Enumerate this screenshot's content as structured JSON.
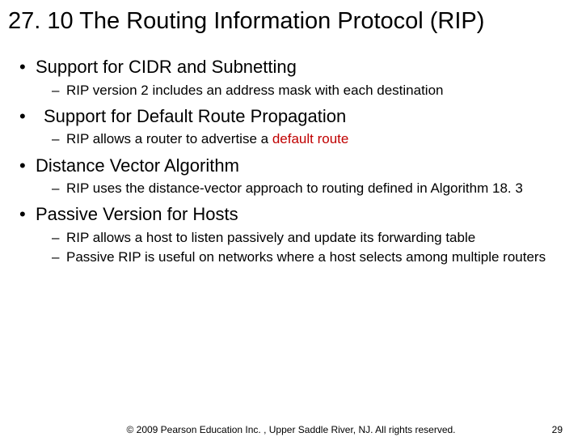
{
  "title": "27. 10  The Routing Information Protocol (RIP)",
  "bullets": [
    {
      "text": "Support for CIDR and Subnetting",
      "sub": [
        "RIP version 2 includes an address mask with each destination"
      ]
    },
    {
      "text": "Support for Default Route Propagation",
      "indent_extra": true,
      "sub_html": [
        {
          "plain": "RIP allows a router to advertise a ",
          "hl": "default route"
        }
      ]
    },
    {
      "text": "Distance Vector Algorithm",
      "sub": [
        "RIP uses the distance-vector approach to routing defined in Algorithm 18. 3"
      ]
    },
    {
      "text": "Passive Version for Hosts",
      "sub": [
        "RIP allows a host to listen passively and update its forwarding table",
        "Passive RIP is useful on networks where a host selects among multiple routers"
      ]
    }
  ],
  "footer": {
    "copyright": "© 2009 Pearson Education Inc. , Upper Saddle River, NJ. All rights reserved.",
    "page": "29"
  },
  "colors": {
    "highlight": "#c00000",
    "text": "#000000",
    "background": "#ffffff"
  }
}
